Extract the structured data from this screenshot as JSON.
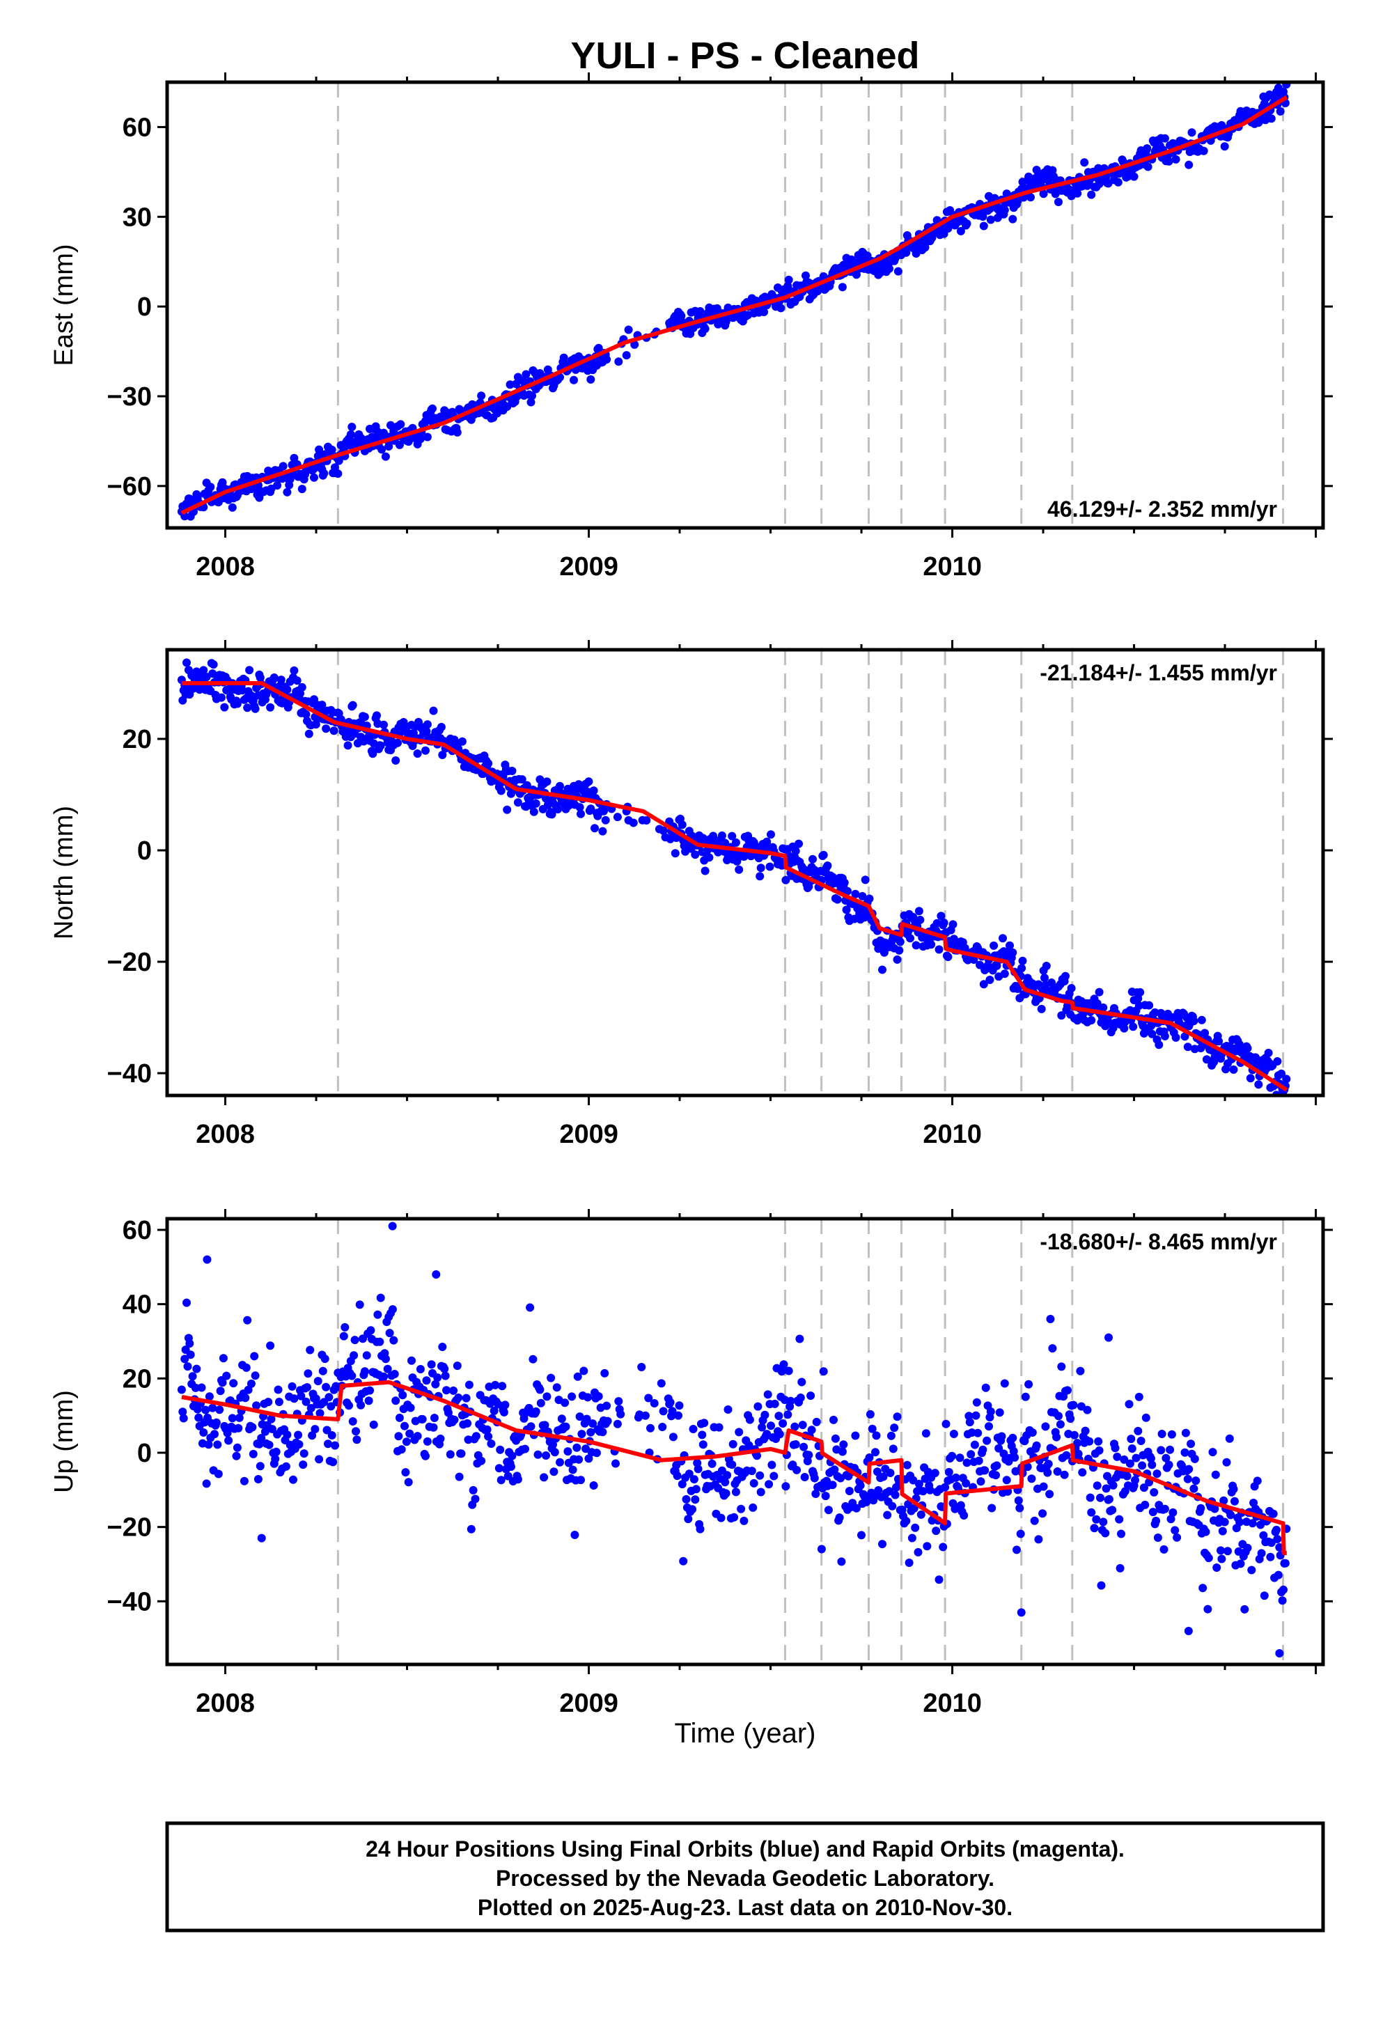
{
  "title": "YULI  - PS - Cleaned",
  "colors": {
    "final_orbits": "#0000ff",
    "model": "#ff0000",
    "steps": "#c0c0c0"
  },
  "x_axis_label": "Time (year)",
  "footer": {
    "line1": "24 Hour Positions Using Final Orbits (blue) and Rapid Orbits (magenta).",
    "line2": "Processed by the Nevada Geodetic Laboratory.",
    "line3": "Plotted on 2025-Aug-23. Last data on 2010-Nov-30."
  },
  "chart_data": [
    {
      "type": "scatter",
      "ylabel": "East (mm)",
      "xlim": [
        2007.84,
        2011.02
      ],
      "ylim": [
        -74,
        75
      ],
      "y_ticks": [
        -60,
        -30,
        0,
        30,
        60
      ],
      "x_ticks": [
        "2008",
        "2009",
        "2010"
      ],
      "grid": false,
      "rate_label": "46.129+/- 2.352 mm/yr",
      "rate_position": "bottom-right",
      "data_start": 2007.88,
      "data_end": 2010.92,
      "step_epochs": [
        2008.31,
        2009.54,
        2009.64,
        2009.77,
        2009.86,
        2009.98,
        2010.19,
        2010.33,
        2010.91
      ],
      "model_knots": [
        [
          2007.88,
          -69
        ],
        [
          2008.0,
          -62
        ],
        [
          2008.3,
          -50
        ],
        [
          2008.6,
          -39
        ],
        [
          2008.9,
          -23
        ],
        [
          2009.1,
          -12
        ],
        [
          2009.3,
          -5
        ],
        [
          2009.54,
          3
        ],
        [
          2009.8,
          16
        ],
        [
          2009.86,
          20
        ],
        [
          2010.0,
          30
        ],
        [
          2010.2,
          38
        ],
        [
          2010.4,
          44
        ],
        [
          2010.6,
          52
        ],
        [
          2010.8,
          61
        ],
        [
          2010.92,
          70
        ]
      ],
      "steps": [],
      "noise_sd": 2.6,
      "outliers": []
    },
    {
      "type": "scatter",
      "ylabel": "North (mm)",
      "xlim": [
        2007.84,
        2011.02
      ],
      "ylim": [
        -44,
        36
      ],
      "y_ticks": [
        -40,
        -20,
        0,
        20
      ],
      "x_ticks": [
        "2008",
        "2009",
        "2010"
      ],
      "grid": false,
      "rate_label": "-21.184+/- 1.455 mm/yr",
      "rate_position": "top-right",
      "data_start": 2007.88,
      "data_end": 2010.92,
      "step_epochs": [
        2008.31,
        2009.54,
        2009.64,
        2009.77,
        2009.86,
        2009.98,
        2010.19,
        2010.33,
        2010.91
      ],
      "model_knots": [
        [
          2007.88,
          30
        ],
        [
          2008.1,
          30
        ],
        [
          2008.3,
          23
        ],
        [
          2008.5,
          20
        ],
        [
          2008.6,
          19
        ],
        [
          2008.8,
          11
        ],
        [
          2009.0,
          9
        ],
        [
          2009.15,
          7
        ],
        [
          2009.3,
          1
        ],
        [
          2009.5,
          -0.5
        ],
        [
          2009.54,
          -1
        ],
        [
          2009.7,
          -6
        ],
        [
          2009.77,
          -8
        ],
        [
          2009.8,
          -12
        ],
        [
          2009.9,
          -14
        ],
        [
          2010.0,
          -16
        ],
        [
          2010.15,
          -18
        ],
        [
          2010.2,
          -23
        ],
        [
          2010.3,
          -25
        ],
        [
          2010.5,
          -27
        ],
        [
          2010.6,
          -28
        ],
        [
          2010.8,
          -35
        ],
        [
          2010.92,
          -40
        ]
      ],
      "steps": [
        [
          2009.54,
          -2
        ],
        [
          2009.86,
          2
        ],
        [
          2009.98,
          -2
        ],
        [
          2010.33,
          -1
        ]
      ],
      "noise_sd": 2.0,
      "outliers": []
    },
    {
      "type": "scatter",
      "ylabel": "Up (mm)",
      "xlim": [
        2007.84,
        2011.02
      ],
      "ylim": [
        -57,
        63
      ],
      "y_ticks": [
        -40,
        -20,
        0,
        20,
        40,
        60
      ],
      "x_ticks": [
        "2008",
        "2009",
        "2010"
      ],
      "grid": false,
      "rate_label": "-18.680+/- 8.465 mm/yr",
      "rate_position": "top-right",
      "data_start": 2007.88,
      "data_end": 2010.92,
      "step_epochs": [
        2008.31,
        2009.54,
        2009.64,
        2009.77,
        2009.86,
        2009.98,
        2010.19,
        2010.33,
        2010.91
      ],
      "model_knots": [
        [
          2007.88,
          15
        ],
        [
          2008.0,
          13
        ],
        [
          2008.15,
          10
        ],
        [
          2008.31,
          9
        ],
        [
          2008.32,
          18
        ],
        [
          2008.45,
          19
        ],
        [
          2008.6,
          14
        ],
        [
          2008.8,
          6
        ],
        [
          2009.0,
          3
        ],
        [
          2009.2,
          -2
        ],
        [
          2009.35,
          -1
        ],
        [
          2009.5,
          1
        ],
        [
          2009.54,
          0
        ],
        [
          2009.55,
          6
        ],
        [
          2009.64,
          3
        ],
        [
          2009.77,
          -5
        ],
        [
          2009.86,
          -4
        ],
        [
          2009.98,
          -12
        ],
        [
          2010.19,
          -10
        ],
        [
          2010.33,
          -5
        ],
        [
          2010.5,
          -8
        ],
        [
          2010.7,
          -16
        ],
        [
          2010.91,
          -22
        ]
      ],
      "steps": [
        [
          2009.64,
          -3
        ],
        [
          2009.77,
          5
        ],
        [
          2009.86,
          -9
        ],
        [
          2009.98,
          8
        ],
        [
          2010.19,
          6
        ],
        [
          2010.33,
          -4
        ],
        [
          2010.91,
          -8
        ]
      ],
      "noise_sd": 10.5,
      "outliers": [
        [
          2007.95,
          52
        ],
        [
          2008.46,
          61
        ],
        [
          2008.58,
          48
        ],
        [
          2010.27,
          36
        ],
        [
          2010.43,
          31
        ],
        [
          2008.1,
          -23
        ],
        [
          2010.19,
          -43
        ],
        [
          2010.65,
          -48
        ],
        [
          2010.9,
          -54
        ]
      ]
    }
  ]
}
